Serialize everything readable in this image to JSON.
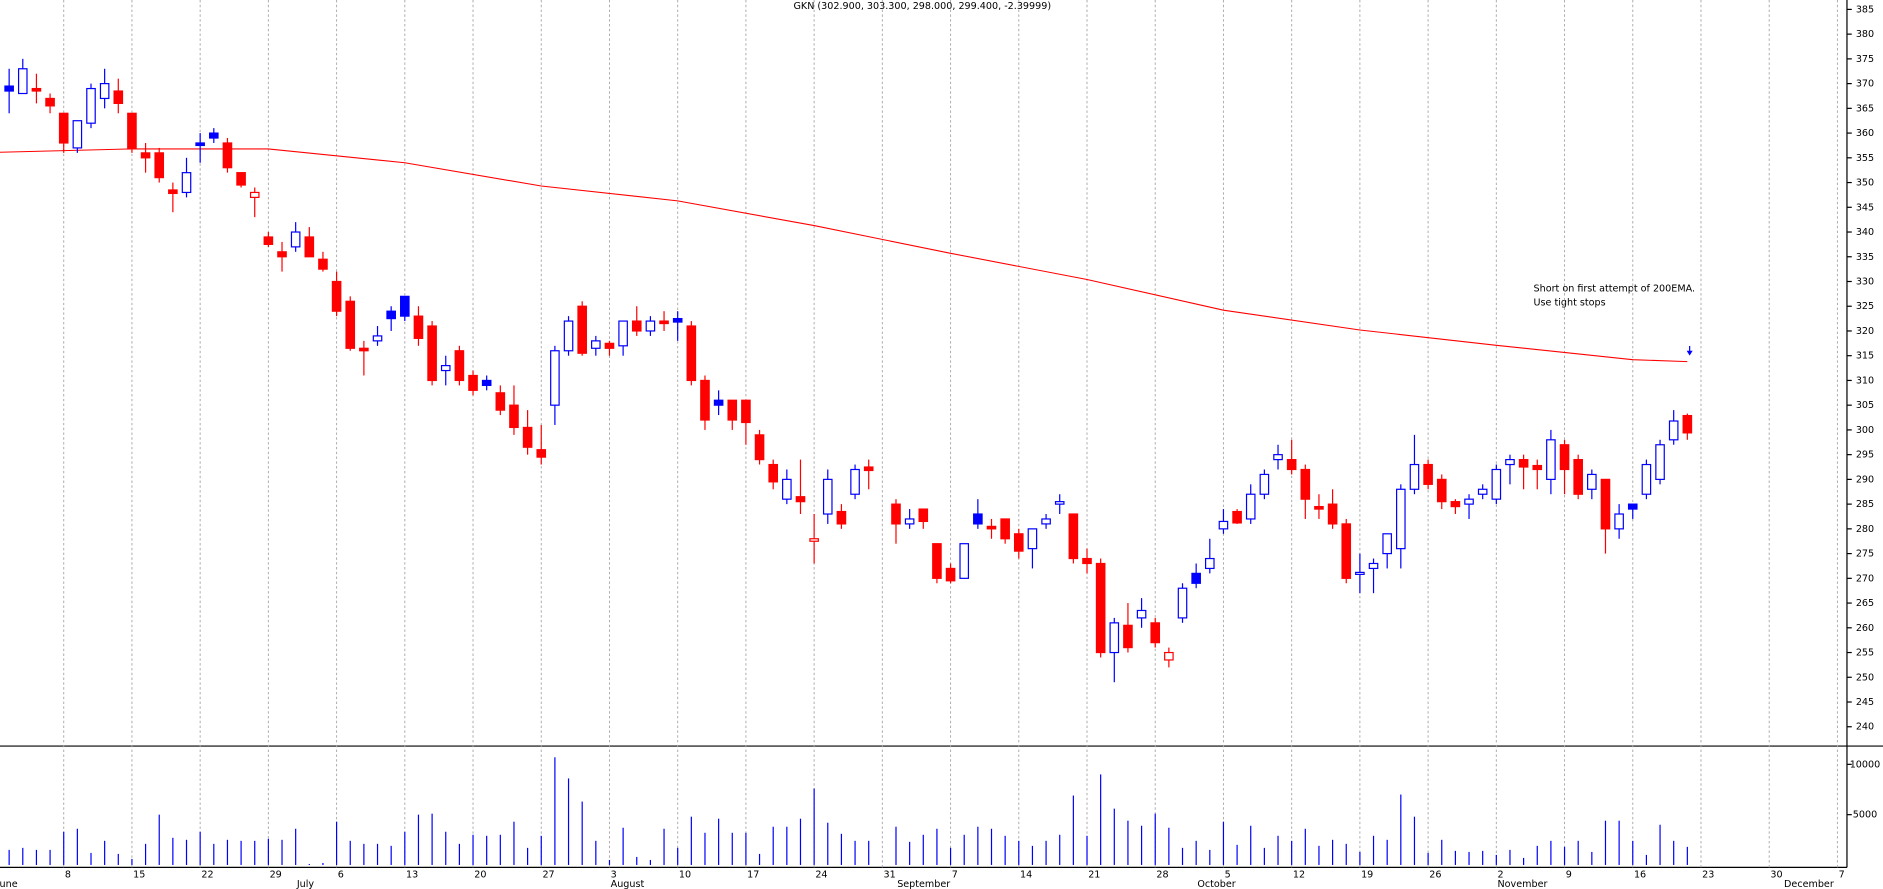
{
  "chart_data": [
    {
      "type": "candlestick",
      "title": "GKN (302.900, 303.300, 298.000, 299.400, -2.39999)",
      "annotations": [
        "Short on first attempt of 200EMA.",
        "Use tight stops"
      ],
      "colors": {
        "up": "#0000ff",
        "down": "#ff0000",
        "annotation": "#0000ff"
      },
      "x": [
        1,
        2,
        3,
        4,
        5,
        6,
        7,
        8,
        9,
        10,
        11,
        12,
        13,
        14,
        15,
        16,
        17,
        18,
        19,
        20,
        21,
        22,
        23,
        24,
        25,
        26,
        27,
        28,
        29,
        30,
        31,
        32,
        33,
        34,
        35,
        36,
        37,
        38,
        39,
        40,
        41,
        42,
        43,
        44,
        45,
        46,
        47,
        48,
        49,
        50,
        51,
        52,
        53,
        54,
        55,
        56,
        57,
        58,
        59,
        60,
        61,
        62,
        63,
        64,
        66,
        67,
        68,
        69,
        70,
        71,
        72,
        73,
        74,
        75,
        76,
        77,
        78,
        79,
        80,
        81,
        82,
        83,
        84,
        85,
        86,
        87,
        88,
        89,
        90,
        91,
        92,
        93,
        94,
        95,
        96,
        97,
        98,
        99,
        100,
        101,
        102,
        103,
        104,
        105,
        106,
        107,
        108,
        109,
        110,
        111,
        112,
        113,
        114,
        115,
        116,
        117,
        118,
        119,
        120,
        121,
        122,
        123,
        124
      ],
      "open": [
        369.5,
        368,
        369,
        367,
        364,
        357,
        362,
        367,
        368.5,
        364,
        356,
        356,
        348.5,
        348,
        358,
        360,
        358,
        352,
        347,
        339,
        336,
        337,
        339,
        334.5,
        330,
        326,
        316.5,
        318,
        324,
        327,
        323,
        321,
        312,
        316,
        311,
        310,
        307.5,
        305,
        300.5,
        296,
        305,
        316,
        325,
        316.5,
        317.5,
        317,
        322,
        320,
        322,
        322.5,
        321,
        310,
        306,
        306,
        306,
        299,
        293,
        286,
        286.5,
        277.5,
        283,
        283.5,
        287,
        292.5,
        285,
        281,
        284,
        277,
        272,
        270,
        283,
        280.5,
        282,
        279,
        276,
        281,
        285,
        283,
        274,
        273,
        255,
        260.5,
        262,
        261,
        253.5,
        262,
        271,
        272,
        280,
        283.5,
        282,
        287,
        294,
        294,
        292,
        284.5,
        285,
        281,
        270.8,
        272,
        275,
        276,
        288,
        293,
        290,
        285.5,
        285,
        287,
        286,
        293,
        294,
        292.8,
        290,
        297,
        294,
        288,
        290,
        280,
        285,
        287,
        290,
        298,
        302.9
      ],
      "high": [
        373,
        375,
        372,
        368,
        364,
        362,
        370,
        373,
        371,
        364,
        358,
        357,
        350,
        355,
        360,
        361,
        359,
        352,
        349,
        340,
        338,
        342,
        341,
        336,
        332,
        327,
        318,
        321,
        325,
        327,
        325,
        322,
        315,
        317,
        312,
        311,
        309,
        309,
        304,
        301,
        317,
        323,
        326,
        319,
        318,
        322,
        325,
        323,
        324,
        324,
        322,
        311,
        308,
        306,
        306,
        300,
        294,
        292,
        294,
        283,
        292,
        285,
        293,
        294,
        286,
        284,
        284,
        277,
        273,
        277,
        286,
        282,
        282,
        280,
        280,
        283,
        287,
        283,
        276,
        274,
        262,
        265,
        266,
        262,
        256,
        269,
        273,
        278,
        284,
        284,
        289,
        292,
        297,
        298,
        293,
        287,
        288,
        282,
        275,
        274,
        279,
        289,
        299,
        294,
        291,
        286,
        287,
        289,
        293,
        295,
        295,
        294,
        300,
        298,
        295,
        292,
        290,
        285,
        285,
        294,
        298,
        304,
        303.3
      ],
      "low": [
        364,
        368,
        366,
        364,
        356,
        356,
        361,
        365,
        364,
        356,
        352,
        350,
        344,
        347,
        354,
        358,
        352,
        349,
        343,
        337,
        332,
        336,
        335,
        332,
        323,
        316,
        311,
        317,
        320,
        322,
        317,
        309,
        309,
        309,
        307,
        308,
        303,
        299,
        295,
        293,
        301,
        315,
        315,
        315,
        315,
        315,
        319,
        319,
        320,
        318,
        309,
        300,
        303,
        300,
        297,
        293,
        288,
        285,
        283,
        273,
        281,
        280,
        286,
        288,
        277,
        280,
        280,
        269,
        269,
        270,
        280,
        278,
        277,
        274,
        272,
        280,
        283,
        273,
        271,
        254,
        249,
        255,
        260,
        256,
        252,
        261,
        268,
        271,
        279,
        281,
        281,
        286,
        292,
        291,
        282,
        282,
        280,
        269,
        267,
        267,
        272,
        272,
        287,
        288,
        284,
        283,
        282,
        286,
        285,
        289,
        288,
        288,
        287,
        287,
        286,
        286,
        275,
        278,
        282,
        286,
        289,
        297,
        298
      ],
      "close": [
        368.5,
        373,
        368.5,
        365.5,
        358,
        362.5,
        369,
        370,
        366,
        357,
        355,
        351,
        347.8,
        352,
        357.5,
        359,
        353,
        349.5,
        348,
        337.5,
        335,
        340,
        335,
        332.5,
        324,
        316.5,
        316,
        319,
        322.5,
        323,
        318.5,
        310,
        313,
        310,
        308,
        309,
        304,
        300.5,
        296.5,
        294.5,
        316,
        322,
        315.5,
        318,
        316.5,
        322,
        320,
        322,
        321.5,
        321.8,
        310,
        302,
        305,
        302,
        301.5,
        294,
        289.5,
        290,
        285.5,
        278,
        290,
        281,
        292,
        291.8,
        281,
        282,
        281.5,
        270,
        269.5,
        277,
        281,
        280,
        278,
        275.5,
        280,
        282,
        285.5,
        274,
        273,
        255,
        261,
        256,
        263.5,
        257,
        255,
        268,
        269,
        274,
        281.5,
        281.2,
        287,
        291,
        295,
        292,
        286,
        284,
        281,
        270,
        271.2,
        273,
        279,
        288,
        293,
        289,
        285.5,
        284.5,
        286,
        288,
        292,
        294,
        292.5,
        292,
        298,
        292,
        287,
        291,
        280,
        283,
        284,
        293,
        297,
        301.8,
        299.4
      ],
      "ema": {
        "color": "#ff0000",
        "x": [
          0,
          10,
          20,
          30,
          40,
          50,
          60,
          70,
          80,
          90,
          100,
          110,
          120,
          124
        ],
        "values": [
          356.1,
          356.8,
          356.8,
          354,
          349.3,
          346.3,
          341.3,
          335.7,
          330.4,
          324.2,
          320.2,
          317.1,
          314.2,
          313.8
        ]
      },
      "xlim": [
        0.33,
        135.7
      ],
      "xticks": [
        {
          "value": 5,
          "label": "8"
        },
        {
          "value": 10,
          "label": "15"
        },
        {
          "value": 15,
          "label": "22"
        },
        {
          "value": 20,
          "label": "29"
        },
        {
          "value": 25,
          "label": "6"
        },
        {
          "value": 30,
          "label": "13"
        },
        {
          "value": 35,
          "label": "20"
        },
        {
          "value": 40,
          "label": "27"
        },
        {
          "value": 45,
          "label": "3"
        },
        {
          "value": 50,
          "label": "10"
        },
        {
          "value": 55,
          "label": "17"
        },
        {
          "value": 60,
          "label": "24"
        },
        {
          "value": 65,
          "label": "31"
        },
        {
          "value": 70,
          "label": "7"
        },
        {
          "value": 75,
          "label": "14"
        },
        {
          "value": 80,
          "label": "21"
        },
        {
          "value": 85,
          "label": "28"
        },
        {
          "value": 90,
          "label": "5"
        },
        {
          "value": 95,
          "label": "12"
        },
        {
          "value": 100,
          "label": "19"
        },
        {
          "value": 105,
          "label": "26"
        },
        {
          "value": 110,
          "label": "2"
        },
        {
          "value": 115,
          "label": "9"
        },
        {
          "value": 120,
          "label": "16"
        },
        {
          "value": 125,
          "label": "23"
        },
        {
          "value": 130,
          "label": "30"
        },
        {
          "value": 135,
          "label": "7"
        }
      ],
      "xticks_months": [
        {
          "value": 0,
          "label": "June"
        },
        {
          "value": 22,
          "label": "July"
        },
        {
          "value": 45,
          "label": "August"
        },
        {
          "value": 66,
          "label": "September"
        },
        {
          "value": 88,
          "label": "October"
        },
        {
          "value": 110,
          "label": "November"
        },
        {
          "value": 131,
          "label": "December"
        }
      ],
      "ylim": [
        236.1,
        386.9
      ],
      "yticks": [
        240,
        245,
        250,
        255,
        260,
        265,
        270,
        275,
        280,
        285,
        290,
        295,
        300,
        305,
        310,
        315,
        320,
        325,
        330,
        335,
        340,
        345,
        350,
        355,
        360,
        365,
        370,
        375,
        380,
        385
      ],
      "grid": true
    },
    {
      "type": "bar",
      "color": "#0000ff",
      "values": [
        1500,
        1700,
        1500,
        1500,
        3300,
        3600,
        1200,
        2400,
        1100,
        600,
        2100,
        5000,
        2700,
        2500,
        3300,
        2100,
        2500,
        2400,
        2400,
        2600,
        2500,
        3600,
        100,
        200,
        4300,
        2400,
        2100,
        2100,
        1900,
        3300,
        5000,
        5100,
        3300,
        2100,
        3000,
        2900,
        3000,
        4300,
        1700,
        2900,
        10700,
        8600,
        6300,
        2400,
        500,
        3700,
        800,
        500,
        3600,
        1700,
        4800,
        3200,
        4600,
        3200,
        3200,
        1100,
        3800,
        3800,
        4600,
        7600,
        4200,
        3100,
        2400,
        2400,
        3800,
        2300,
        3000,
        3600,
        1700,
        3000,
        3800,
        3600,
        2900,
        2400,
        1900,
        2400,
        3000,
        6900,
        2900,
        9000,
        5600,
        4400,
        3900,
        5100,
        3700,
        1700,
        2400,
        1500,
        4300,
        2000,
        3900,
        1700,
        2900,
        2400,
        3600,
        1900,
        2500,
        2100,
        1300,
        2900,
        2500,
        7000,
        4800,
        1200,
        2500,
        1400,
        1300,
        1400,
        1000,
        1500,
        700,
        1900,
        2400,
        1800,
        2400,
        1300,
        4400,
        4400,
        2400,
        1000,
        4000,
        2400,
        1800
      ],
      "ylim": [
        0,
        11700
      ],
      "yticks": [
        5000,
        10000
      ]
    }
  ]
}
